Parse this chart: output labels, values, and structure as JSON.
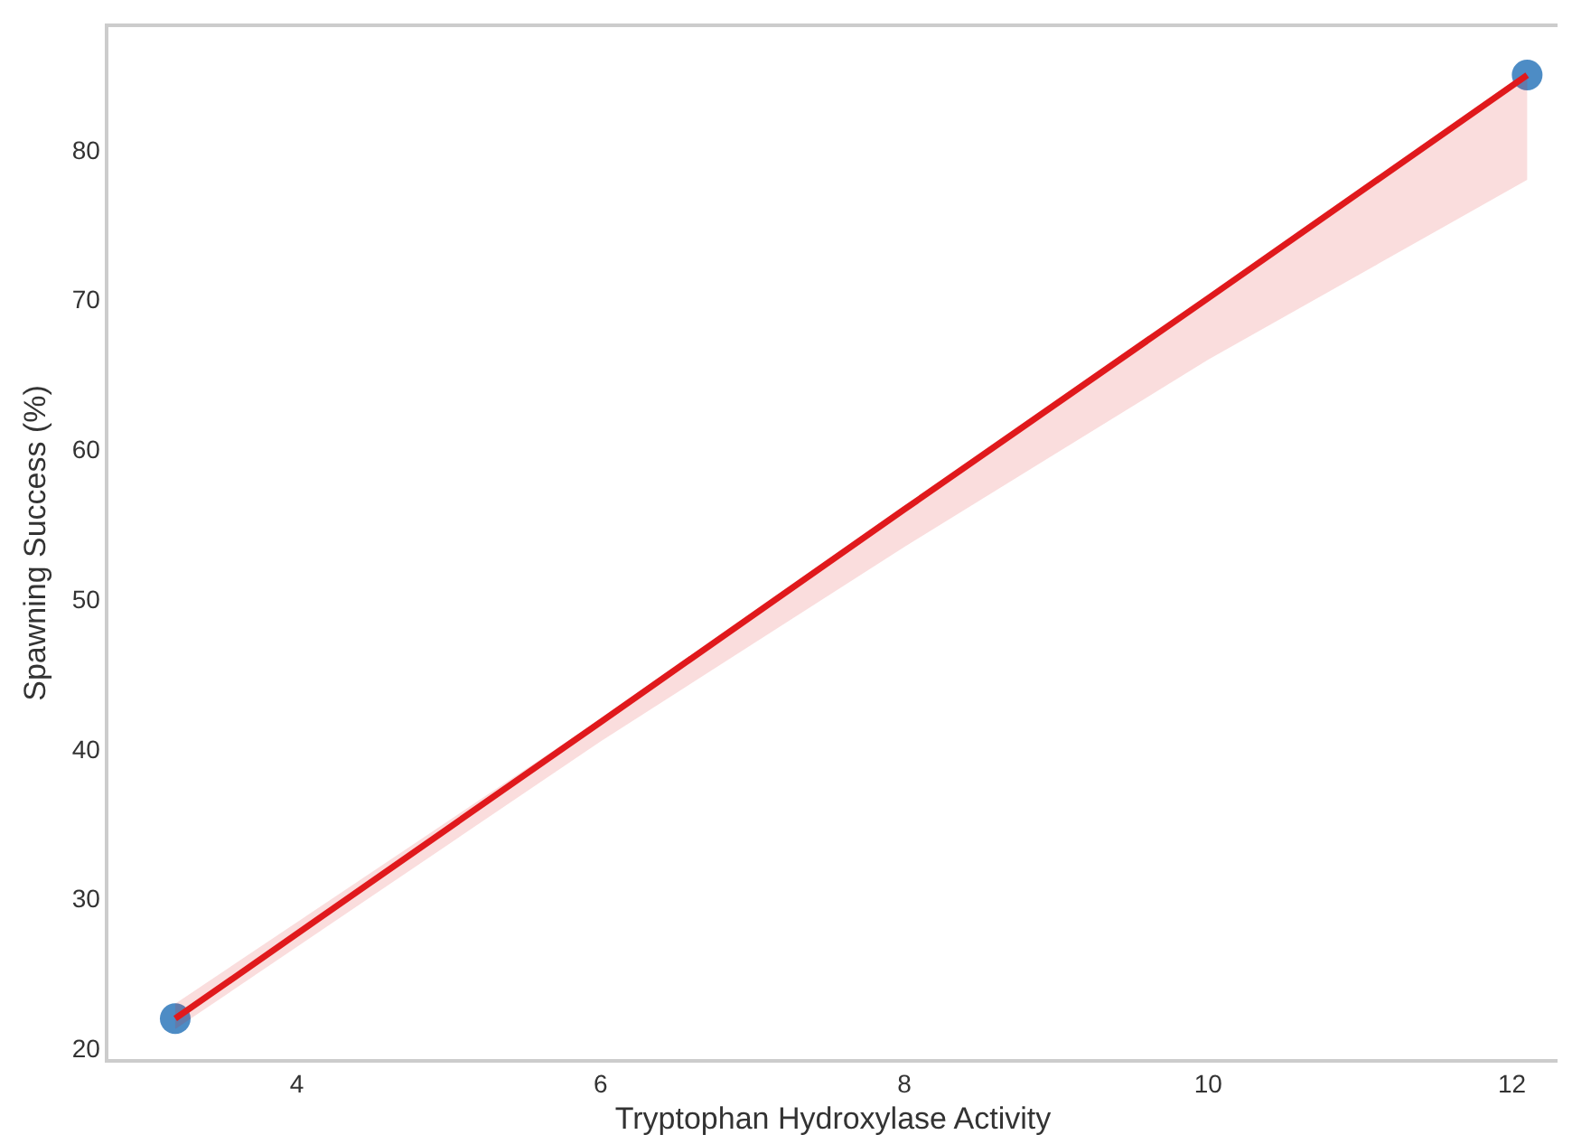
{
  "chart_data": {
    "type": "scatter",
    "xlabel": "Tryptophan Hydroxylase Activity",
    "ylabel": "Spawning Success (%)",
    "xlim": [
      2.76,
      12.3
    ],
    "xticks": [
      4,
      6,
      8,
      10,
      12
    ],
    "ylim": [
      19.3,
      88.2
    ],
    "yticks": [
      20,
      30,
      40,
      50,
      60,
      70,
      80
    ],
    "grid": false,
    "series": [
      {
        "color": "#3a80bf",
        "x": [
          3.2,
          12.1
        ],
        "values": [
          22,
          85
        ],
        "marker": "circle"
      },
      {
        "type": "line",
        "color": "#e0191c",
        "x": [
          3.2,
          6,
          8,
          10,
          12.1
        ],
        "values": [
          22,
          41.8,
          56,
          70.1,
          85
        ],
        "lower": [
          21.3,
          40.5,
          53.5,
          66,
          78
        ],
        "upper": [
          23,
          42,
          56.2,
          70.3,
          85
        ],
        "line_style": "solid"
      }
    ]
  }
}
